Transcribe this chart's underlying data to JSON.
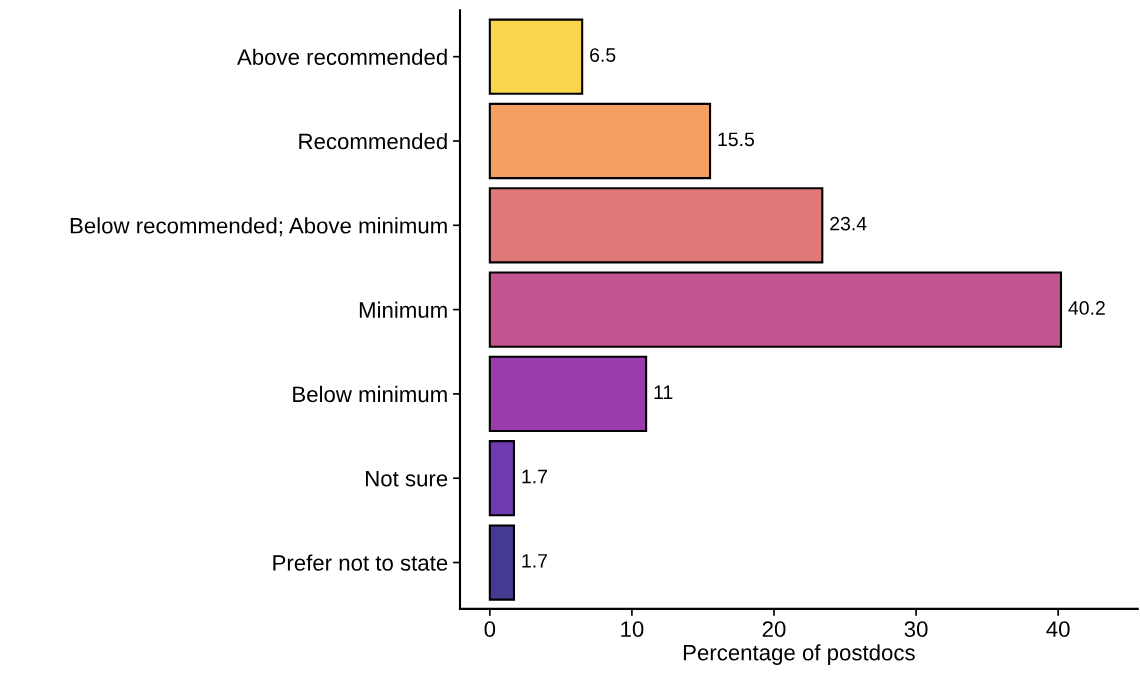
{
  "chart_data": {
    "type": "bar",
    "orientation": "horizontal",
    "xlabel": "Percentage of postdocs",
    "categories": [
      "Above recommended",
      "Recommended",
      "Below recommended; Above minimum",
      "Minimum",
      "Below minimum",
      "Not sure",
      "Prefer not to state"
    ],
    "values": [
      6.5,
      15.5,
      23.4,
      40.2,
      11,
      1.7,
      1.7
    ],
    "colors": [
      "#f9d54e",
      "#f59f61",
      "#e07779",
      "#c2558f",
      "#9a3cab",
      "#6e3aad",
      "#433a91"
    ],
    "xlim": [
      -2.1,
      45.6
    ],
    "xticks": [
      0,
      10,
      20,
      30,
      40
    ],
    "data_labels": true,
    "grid": false
  }
}
